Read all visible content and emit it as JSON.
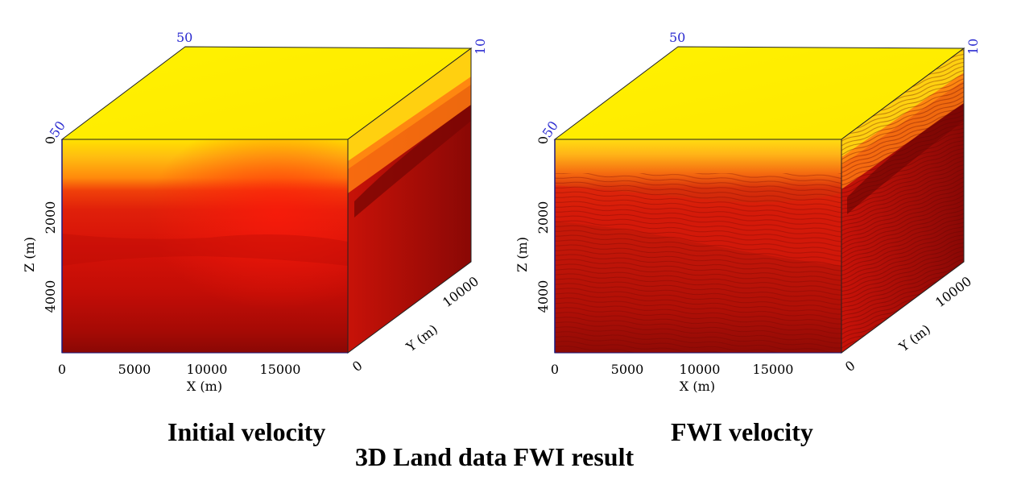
{
  "figure": {
    "main_title": "3D Land data FWI result",
    "colors": {
      "top": "#ffee00",
      "mid": "#ff6a00",
      "red": "#d80d08",
      "deep": "#8a0a05",
      "blue_label": "#2b2bd0"
    }
  },
  "panels": [
    {
      "id": "initial",
      "title": "Initial velocity",
      "x_axis": {
        "label": "X (m)",
        "ticks": [
          "0",
          "5000",
          "10000",
          "15000"
        ]
      },
      "z_axis": {
        "label": "Z (m)",
        "ticks": [
          "0",
          "2000",
          "4000"
        ]
      },
      "y_axis": {
        "label": "Y (m)",
        "ticks": [
          "0",
          "10000"
        ]
      },
      "slice_labels": {
        "top_x": "50",
        "corner": "50",
        "right": "10"
      }
    },
    {
      "id": "fwi",
      "title": "FWI velocity",
      "x_axis": {
        "label": "X (m)",
        "ticks": [
          "0",
          "5000",
          "10000",
          "15000"
        ]
      },
      "z_axis": {
        "label": "Z (m)",
        "ticks": [
          "0",
          "2000",
          "4000"
        ]
      },
      "y_axis": {
        "label": "Y (m)",
        "ticks": [
          "0",
          "10000"
        ]
      },
      "slice_labels": {
        "top_x": "50",
        "corner": "50",
        "right": "10"
      }
    }
  ]
}
